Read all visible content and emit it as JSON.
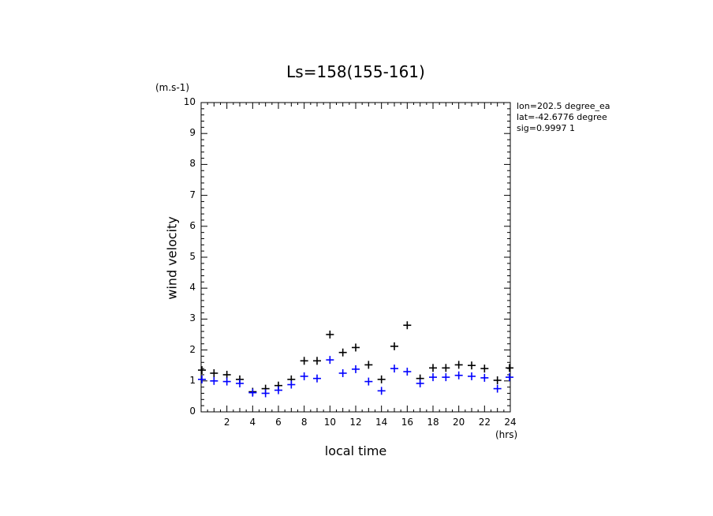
{
  "chart_data": {
    "type": "scatter",
    "title": "Ls=158(155-161)",
    "xlabel": "local time",
    "ylabel": "wind velocity",
    "xunit": "(hrs)",
    "yunit": "(m.s-1)",
    "xlim": [
      0,
      24
    ],
    "ylim": [
      0,
      10
    ],
    "xticks": [
      "2",
      "4",
      "6",
      "8",
      "10",
      "12",
      "14",
      "16",
      "18",
      "20",
      "22",
      "24"
    ],
    "yticks": [
      "0",
      "1",
      "2",
      "3",
      "4",
      "5",
      "6",
      "7",
      "8",
      "9",
      "10"
    ],
    "annotations": [
      "lon=202.5 degree_ea",
      "lat=-42.6776 degree",
      "sig=0.9997 1"
    ],
    "x": [
      0,
      1,
      2,
      3,
      4,
      5,
      6,
      7,
      8,
      9,
      10,
      11,
      12,
      13,
      14,
      15,
      16,
      17,
      18,
      19,
      20,
      21,
      22,
      23,
      24
    ],
    "series": [
      {
        "color": "#000000",
        "values": [
          1.35,
          1.25,
          1.2,
          1.05,
          0.65,
          0.75,
          0.85,
          1.05,
          1.65,
          1.65,
          2.5,
          1.92,
          2.08,
          1.52,
          1.05,
          2.12,
          2.8,
          1.08,
          1.42,
          1.42,
          1.52,
          1.5,
          1.4,
          1.02,
          1.42
        ]
      },
      {
        "color": "#0000ff",
        "values": [
          1.05,
          1.0,
          0.98,
          0.92,
          0.62,
          0.6,
          0.7,
          0.88,
          1.15,
          1.08,
          1.68,
          1.25,
          1.38,
          0.98,
          0.68,
          1.4,
          1.3,
          0.92,
          1.12,
          1.12,
          1.18,
          1.15,
          1.1,
          0.75,
          1.12
        ]
      }
    ]
  }
}
